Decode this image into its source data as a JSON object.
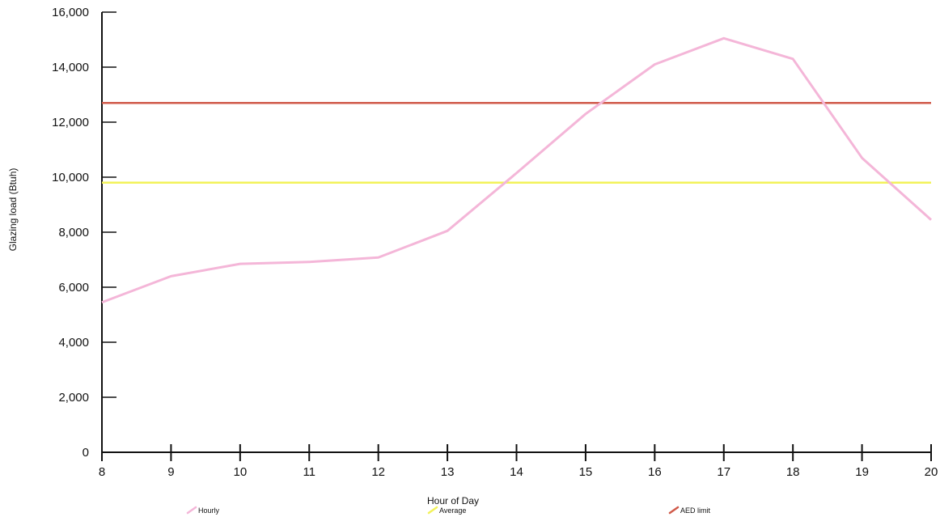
{
  "chart_data": {
    "type": "line",
    "title": "",
    "xlabel": "Hour of Day",
    "ylabel": "Glazing load (Btuh)",
    "x": [
      8,
      9,
      10,
      11,
      12,
      13,
      14,
      15,
      16,
      17,
      18,
      19,
      20
    ],
    "xlim": [
      8,
      20
    ],
    "ylim": [
      0,
      16000
    ],
    "yticks": [
      0,
      2000,
      4000,
      6000,
      8000,
      10000,
      12000,
      14000,
      16000
    ],
    "ytick_labels": [
      "0",
      "2,000",
      "4,000",
      "6,000",
      "8,000",
      "10,000",
      "12,000",
      "14,000",
      "16,000"
    ],
    "xtick_labels": [
      "8",
      "9",
      "10",
      "11",
      "12",
      "13",
      "14",
      "15",
      "16",
      "17",
      "18",
      "19",
      "20"
    ],
    "grid": false,
    "legend": "bottom",
    "series": [
      {
        "name": "Hourly",
        "color": "#f4b6d8",
        "values": [
          5450,
          6400,
          6850,
          6920,
          7080,
          8050,
          10150,
          12300,
          14100,
          15050,
          14300,
          10700,
          8450
        ]
      },
      {
        "name": "Average",
        "color": "#f2f25a",
        "values": [
          9800,
          9800,
          9800,
          9800,
          9800,
          9800,
          9800,
          9800,
          9800,
          9800,
          9800,
          9800,
          9800
        ]
      },
      {
        "name": "AED limit",
        "color": "#d05a4a",
        "values": [
          12700,
          12700,
          12700,
          12700,
          12700,
          12700,
          12700,
          12700,
          12700,
          12700,
          12700,
          12700,
          12700
        ]
      }
    ]
  }
}
